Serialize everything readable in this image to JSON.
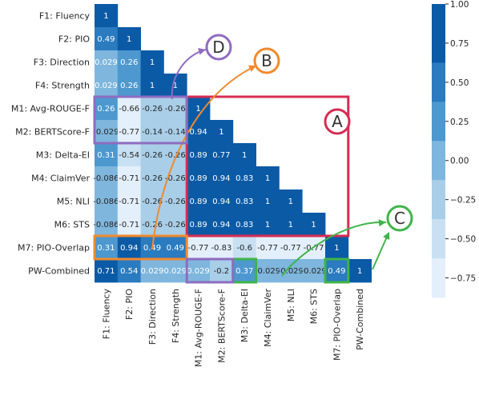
{
  "chart_data": {
    "type": "heatmap",
    "title": "",
    "xlabel": "",
    "ylabel": "",
    "rows": [
      "F1: Fluency",
      "F2: PIO",
      "F3: Direction",
      "F4: Strength",
      "M1: Avg-ROUGE-F",
      "M2: BERTScore-F",
      "M3: Delta-EI",
      "M4: ClaimVer",
      "M5: NLI",
      "M6: STS",
      "M7: PIO-Overlap",
      "PW-Combined"
    ],
    "columns": [
      "F1: Fluency",
      "F2: PIO",
      "F3: Direction",
      "F4: Strength",
      "M1: Avg-ROUGE-F",
      "M2: BERTScore-F",
      "M3: Delta-EI",
      "M4: ClaimVer",
      "M5: NLI",
      "M6: STS",
      "M7: PIO-Overlap",
      "PW-Combined"
    ],
    "values": [
      [
        1
      ],
      [
        0.49,
        1
      ],
      [
        0.029,
        0.26,
        1
      ],
      [
        0.029,
        0.26,
        1,
        1
      ],
      [
        0.26,
        -0.66,
        -0.26,
        -0.26,
        1
      ],
      [
        -0.029,
        -0.77,
        -0.14,
        -0.14,
        0.94,
        1
      ],
      [
        0.31,
        -0.54,
        -0.26,
        -0.26,
        0.89,
        0.77,
        1
      ],
      [
        -0.086,
        -0.71,
        -0.26,
        -0.26,
        0.89,
        0.94,
        0.83,
        1
      ],
      [
        -0.086,
        -0.71,
        -0.26,
        -0.26,
        0.89,
        0.94,
        0.83,
        1,
        1
      ],
      [
        -0.086,
        -0.71,
        -0.26,
        -0.26,
        0.89,
        0.94,
        0.83,
        1,
        1,
        1
      ],
      [
        0.31,
        0.94,
        0.49,
        0.49,
        -0.77,
        -0.83,
        -0.6,
        -0.77,
        -0.77,
        -0.77,
        1
      ],
      [
        0.71,
        0.54,
        0.029,
        0.029,
        0.029,
        -0.2,
        0.37,
        -0.029,
        -0.029,
        -0.029,
        0.49,
        1
      ]
    ],
    "value_labels": [
      [
        "1"
      ],
      [
        "0.49",
        "1"
      ],
      [
        "0.029",
        "0.26",
        "1"
      ],
      [
        "0.029",
        "0.26",
        "1",
        "1"
      ],
      [
        "0.26",
        "-0.66",
        "-0.26",
        "-0.26",
        "1"
      ],
      [
        "-0.029",
        "-0.77",
        "-0.14",
        "-0.14",
        "0.94",
        "1"
      ],
      [
        "0.31",
        "-0.54",
        "-0.26",
        "-0.26",
        "0.89",
        "0.77",
        "1"
      ],
      [
        "-0.086",
        "-0.71",
        "-0.26",
        "-0.26",
        "0.89",
        "0.94",
        "0.83",
        "1"
      ],
      [
        "-0.086",
        "-0.71",
        "-0.26",
        "-0.26",
        "0.89",
        "0.94",
        "0.83",
        "1",
        "1"
      ],
      [
        "-0.086",
        "-0.71",
        "-0.26",
        "-0.26",
        "0.89",
        "0.94",
        "0.83",
        "1",
        "1",
        "1"
      ],
      [
        "0.31",
        "0.94",
        "0.49",
        "0.49",
        "-0.77",
        "-0.83",
        "-0.6",
        "-0.77",
        "-0.77",
        "-0.77",
        "1"
      ],
      [
        "0.71",
        "0.54",
        "0.029",
        "0.029",
        "0.029",
        "-0.2",
        "0.37",
        "-0.029",
        "-0.029",
        "-0.029",
        "0.49",
        "1"
      ]
    ],
    "colorbar": {
      "min": -0.875,
      "max": 1.0,
      "ticks": [
        1.0,
        0.75,
        0.5,
        0.25,
        0.0,
        -0.25,
        -0.5,
        -0.75
      ],
      "tick_labels": [
        "1.00",
        "0.75",
        "0.50",
        "0.25",
        "0.00",
        "−0.25",
        "−0.50",
        "−0.75"
      ],
      "bins": [
        {
          "low": 0.625,
          "high": 1.0,
          "color": "#0b5aa6"
        },
        {
          "low": 0.375,
          "high": 0.625,
          "color": "#2a7bbf"
        },
        {
          "low": 0.125,
          "high": 0.375,
          "color": "#4d98cf"
        },
        {
          "low": -0.125,
          "high": 0.125,
          "color": "#7eb6dd"
        },
        {
          "low": -0.375,
          "high": -0.125,
          "color": "#a9cee8"
        },
        {
          "low": -0.625,
          "high": -0.375,
          "color": "#c8e0f2"
        },
        {
          "low": -0.875,
          "high": -0.625,
          "color": "#e3effa"
        }
      ]
    },
    "annotations": [
      {
        "label": "A",
        "color": "#d62c52",
        "region": "rows M1–M6, columns M1–M6"
      },
      {
        "label": "B",
        "color": "#f08a2d",
        "region": "row M7, columns F1–F4"
      },
      {
        "label": "C",
        "color": "#3fb44a",
        "region": "row PW-Combined, columns M3 and M7"
      },
      {
        "label": "D",
        "color": "#8e6cc0",
        "region": "rows M1–M2, columns F1–F4; row PW-Combined, columns M1–M2"
      }
    ]
  }
}
